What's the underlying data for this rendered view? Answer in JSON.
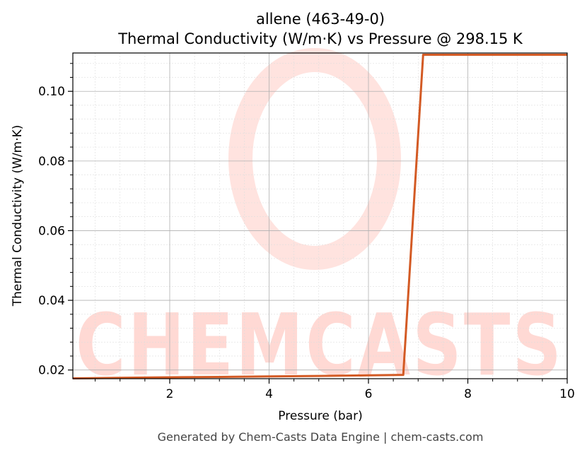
{
  "chart_data": {
    "type": "line",
    "title": "allene (463-49-0)",
    "subtitle": "Thermal Conductivity (W/m·K) vs Pressure @ 298.15 K",
    "xlabel": "Pressure (bar)",
    "ylabel": "Thermal Conductivity (W/m·K)",
    "xlim": [
      0.05,
      10
    ],
    "ylim": [
      0.0175,
      0.111
    ],
    "x_ticks": [
      2,
      4,
      6,
      8,
      10
    ],
    "x_tick_labels": [
      "2",
      "4",
      "6",
      "8",
      "10"
    ],
    "y_ticks": [
      0.02,
      0.04,
      0.06,
      0.08,
      0.1
    ],
    "y_tick_labels": [
      "0.02",
      "0.04",
      "0.06",
      "0.08",
      "0.10"
    ],
    "grid": true,
    "legend": "none",
    "series": [
      {
        "color": "#d35a24",
        "x": [
          0.05,
          1,
          2,
          3,
          4,
          5,
          6,
          6.7,
          7.1,
          8,
          9,
          10
        ],
        "y": [
          0.0176,
          0.01775,
          0.0179,
          0.018,
          0.01815,
          0.0183,
          0.01845,
          0.0186,
          0.1105,
          0.1105,
          0.1105,
          0.1105
        ]
      }
    ]
  },
  "watermark": {
    "text": "CHEMCASTS",
    "color": "#ffd9d4"
  },
  "footer": {
    "text": "Generated by Chem-Casts Data Engine | chem-casts.com"
  }
}
